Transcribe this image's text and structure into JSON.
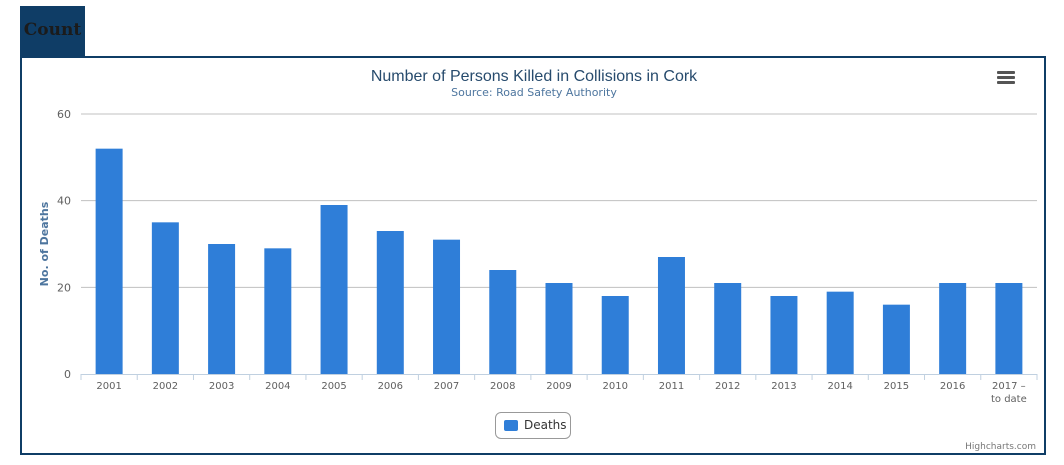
{
  "tab": {
    "label": "Count"
  },
  "chart_data": {
    "type": "bar",
    "title": "Number of Persons Killed in Collisions in Cork",
    "subtitle": "Source: Road Safety Authority",
    "xlabel": "",
    "ylabel": "No. of Deaths",
    "ylim": [
      0,
      60
    ],
    "yticks": [
      0,
      20,
      40,
      60
    ],
    "grid": true,
    "legend_position": "bottom-center",
    "categories": [
      "2001",
      "2002",
      "2003",
      "2004",
      "2005",
      "2006",
      "2007",
      "2008",
      "2009",
      "2010",
      "2011",
      "2012",
      "2013",
      "2014",
      "2015",
      "2016",
      "2017 – to date"
    ],
    "series": [
      {
        "name": "Deaths",
        "color": "#2f7ed8",
        "values": [
          52,
          35,
          30,
          29,
          39,
          33,
          31,
          24,
          21,
          18,
          27,
          21,
          18,
          19,
          16,
          21,
          21
        ]
      }
    ]
  },
  "credits": "Highcharts.com",
  "colors": {
    "frame": "#0f3d66",
    "title": "#274b6d",
    "subtitle": "#4d759e",
    "bar": "#2f7ed8"
  },
  "icons": {
    "menu": "hamburger-menu-icon"
  }
}
